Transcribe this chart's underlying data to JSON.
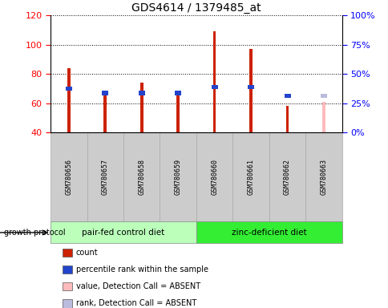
{
  "title": "GDS4614 / 1379485_at",
  "samples": [
    "GSM780656",
    "GSM780657",
    "GSM780658",
    "GSM780659",
    "GSM780660",
    "GSM780661",
    "GSM780662",
    "GSM780663"
  ],
  "count_values": [
    84,
    68,
    74,
    67,
    109,
    97,
    58,
    61
  ],
  "rank_values": [
    70,
    67,
    67,
    67,
    71,
    71,
    65,
    65
  ],
  "absent_flags": [
    false,
    false,
    false,
    false,
    false,
    false,
    false,
    true
  ],
  "ylim": [
    40,
    120
  ],
  "y2lim": [
    0,
    100
  ],
  "yticks": [
    40,
    60,
    80,
    100,
    120
  ],
  "y2ticks": [
    0,
    25,
    50,
    75,
    100
  ],
  "y2ticklabels": [
    "0%",
    "25%",
    "50%",
    "75%",
    "100%"
  ],
  "groups": [
    {
      "label": "pair-fed control diet",
      "start": 0,
      "end": 3,
      "color": "#bbffbb"
    },
    {
      "label": "zinc-deficient diet",
      "start": 4,
      "end": 7,
      "color": "#33ee33"
    }
  ],
  "group_label_prefix": "growth protocol",
  "count_color": "#cc2200",
  "rank_color": "#2244cc",
  "absent_count_color": "#ffbbbb",
  "absent_rank_color": "#bbbbdd",
  "legend_items": [
    {
      "color": "#cc2200",
      "label": "count"
    },
    {
      "color": "#2244cc",
      "label": "percentile rank within the sample"
    },
    {
      "color": "#ffbbbb",
      "label": "value, Detection Call = ABSENT"
    },
    {
      "color": "#bbbbdd",
      "label": "rank, Detection Call = ABSENT"
    }
  ]
}
